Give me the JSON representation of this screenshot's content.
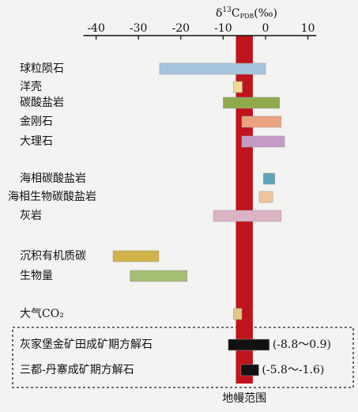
{
  "chart_data": {
    "type": "range-bar",
    "axis_label": {
      "prefix": "δ",
      "sup": "13",
      "base": "C",
      "sub": "PDB",
      "suffix": "(‰)"
    },
    "categories": [
      "球粒陨石",
      "洋壳",
      "碳酸盐岩",
      "金刚石",
      "大理石",
      "海相碳酸盐岩",
      "海相生物碳酸盐岩",
      "灰岩",
      "沉积有机质碳",
      "生物量",
      "大气CO₂",
      "灰家堡金矿田成矿期方解石",
      "三都-丹寨成矿期方解石"
    ],
    "values": [
      [
        -25,
        0
      ],
      [
        -7.6,
        -5.5
      ],
      [
        -10,
        3.3
      ],
      [
        -5.6,
        3.7
      ],
      [
        -5.6,
        4.5
      ],
      [
        -0.5,
        2.2
      ],
      [
        -1.5,
        1.7
      ],
      [
        -12.3,
        3.7
      ],
      [
        -36,
        -25.2
      ],
      [
        -32,
        -18.5
      ],
      [
        -7.6,
        -5.6
      ],
      [
        -8.8,
        0.9
      ],
      [
        -5.8,
        -1.6
      ]
    ],
    "value_labels": [
      null,
      null,
      null,
      null,
      null,
      null,
      null,
      null,
      null,
      null,
      null,
      "(-8.8～0.9)",
      "(-5.8～-1.6)"
    ],
    "colors": [
      "#a5c4dc",
      "#efdc94",
      "#8faa4c",
      "#eba37f",
      "#c59bc6",
      "#5ba6b9",
      "#efc49c",
      "#dcb3c5",
      "#d2b24b",
      "#a5be74",
      "#e2c985",
      "#111111",
      "#111111"
    ],
    "band": {
      "label": "地幔范围",
      "range": [
        -7,
        -3
      ],
      "color": "#c0141c"
    },
    "xlim": [
      -43,
      12
    ],
    "xticks": [
      -40,
      -30,
      -20,
      -10,
      0,
      10
    ]
  }
}
